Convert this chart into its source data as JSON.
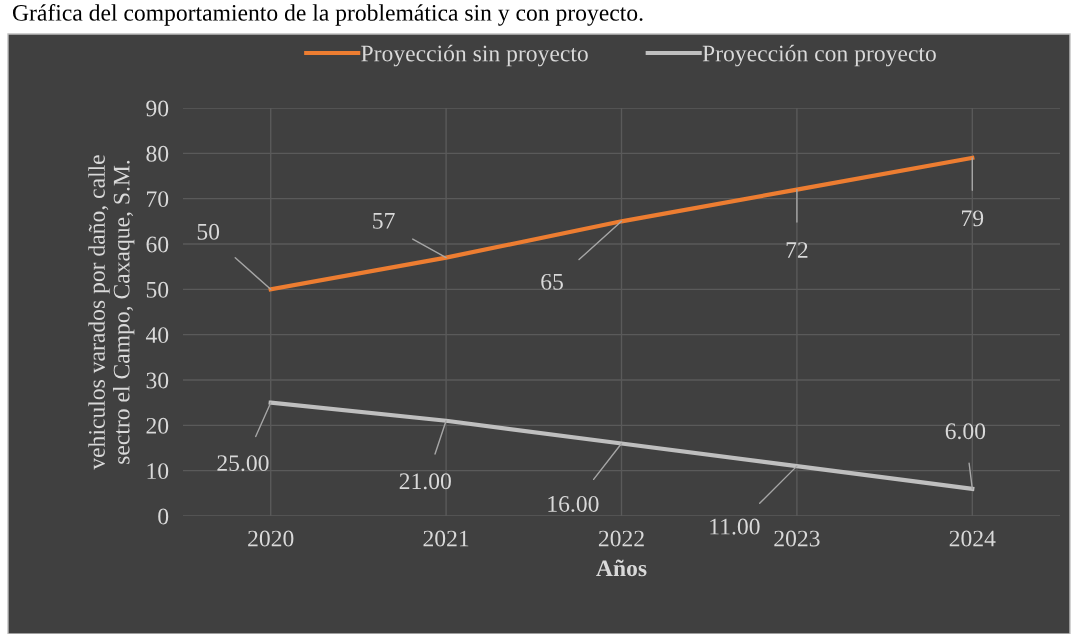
{
  "chart_data": {
    "type": "line",
    "title": "Gráfica del comportamiento de la problemática sin y con proyecto.",
    "xlabel": "Años",
    "ylabel": "vehiculos varados por daño, calle\nsectro el Campo, Caxaque, S.M.",
    "categories": [
      "2020",
      "2021",
      "2022",
      "2023",
      "2024"
    ],
    "series": [
      {
        "name": "Proyección sin proyecto",
        "color": "#ed7d31",
        "values": [
          50,
          57,
          65,
          72,
          79
        ],
        "value_labels": [
          "50",
          "57",
          "65",
          "72",
          "79"
        ]
      },
      {
        "name": "Proyección con proyecto",
        "color": "#bfbfbf",
        "values": [
          25,
          21,
          16,
          11,
          6
        ],
        "value_labels": [
          "25.00",
          "21.00",
          "16.00",
          "11.00",
          "6.00"
        ]
      }
    ],
    "ylim": [
      0,
      90
    ],
    "yticks": [
      0,
      10,
      20,
      30,
      40,
      50,
      60,
      70,
      80,
      90
    ],
    "grid": true,
    "legend": "top",
    "marker": "none",
    "line_style": "solid"
  }
}
